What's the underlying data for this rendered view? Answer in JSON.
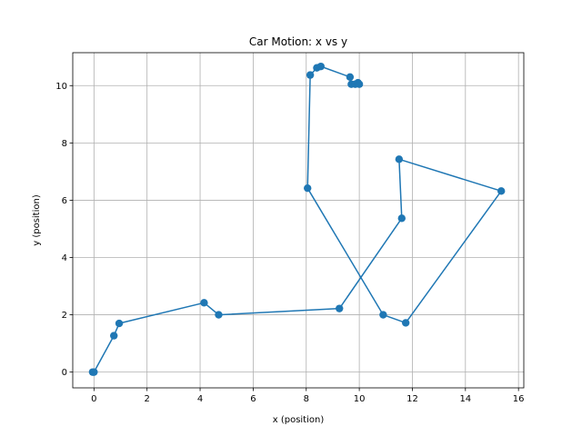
{
  "chart_data": {
    "type": "line",
    "title": "Car Motion: x vs y",
    "xlabel": "x (position)",
    "ylabel": "y (position)",
    "xlim": [
      -0.8,
      16.2
    ],
    "ylim": [
      -0.55,
      11.15
    ],
    "xticks": [
      0,
      2,
      4,
      6,
      8,
      10,
      12,
      14,
      16
    ],
    "yticks": [
      0,
      2,
      4,
      6,
      8,
      10
    ],
    "grid": true,
    "line_color": "#1f77b4",
    "marker": "circle",
    "series": [
      {
        "x": [
          -0.05,
          0.0,
          0.75,
          0.95,
          4.15,
          4.7,
          9.25,
          11.6,
          11.5,
          15.35,
          11.75,
          10.9,
          8.05,
          8.15,
          8.4,
          8.55,
          9.65,
          9.7,
          9.85,
          9.95,
          10.0
        ],
        "y": [
          0.0,
          0.0,
          1.27,
          1.7,
          2.42,
          2.0,
          2.22,
          5.37,
          7.43,
          6.32,
          1.72,
          2.0,
          6.42,
          10.37,
          10.62,
          10.67,
          10.3,
          10.05,
          10.05,
          10.1,
          10.05
        ]
      }
    ]
  }
}
